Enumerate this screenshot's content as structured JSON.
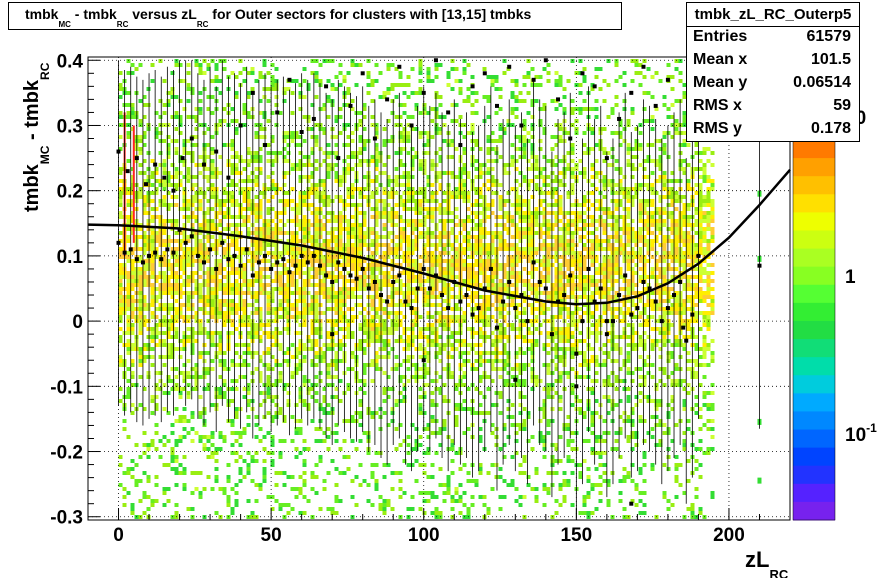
{
  "chart_data": {
    "type": "heatmap",
    "title_parts": [
      {
        "t": "tmbk",
        "sub": "MC"
      },
      {
        "t": " - tmbk",
        "sub": "RC"
      },
      {
        "t": " versus zL",
        "sub": "RC"
      },
      {
        "t": " for Outer sectors for clusters with [13,15] tmbks",
        "sub": ""
      }
    ],
    "xlabel": {
      "t": "zL",
      "sub": "RC"
    },
    "ylabel_parts": [
      {
        "t": "tmbk",
        "sub": "MC"
      },
      {
        "t": " - tmbk",
        "sub": "RC"
      }
    ],
    "xlim": [
      -10,
      220
    ],
    "ylim": [
      -0.305,
      0.405
    ],
    "xticks": [
      0,
      50,
      100,
      150,
      200
    ],
    "yticks": [
      -0.3,
      -0.2,
      -0.1,
      0,
      0.1,
      0.2,
      0.3,
      0.4
    ],
    "xtick_labels": [
      "0",
      "50",
      "100",
      "150",
      "200"
    ],
    "ytick_labels": [
      "-0.3",
      "-0.2",
      "-0.1",
      "0",
      "0.1",
      "0.2",
      "0.3",
      "0.4"
    ],
    "grid": true,
    "colz_labels": [
      {
        "t": "10",
        "sup": ""
      },
      {
        "t": "1",
        "sup": ""
      },
      {
        "t": "10",
        "sup": "-1"
      }
    ],
    "fit_curve": {
      "x": [
        -10,
        0,
        20,
        40,
        60,
        80,
        100,
        120,
        140,
        150,
        160,
        170,
        180,
        190,
        200,
        210,
        220
      ],
      "y": [
        0.148,
        0.147,
        0.142,
        0.13,
        0.116,
        0.097,
        0.073,
        0.047,
        0.03,
        0.026,
        0.028,
        0.038,
        0.058,
        0.088,
        0.128,
        0.178,
        0.232
      ]
    },
    "profile": {
      "x": [
        0,
        2,
        4,
        6,
        8,
        10,
        12,
        14,
        16,
        18,
        20,
        22,
        24,
        26,
        28,
        30,
        32,
        34,
        36,
        38,
        40,
        42,
        44,
        46,
        48,
        50,
        52,
        54,
        56,
        58,
        60,
        62,
        64,
        66,
        68,
        70,
        72,
        74,
        76,
        78,
        80,
        82,
        84,
        86,
        88,
        90,
        92,
        94,
        96,
        98,
        100,
        102,
        104,
        106,
        108,
        110,
        112,
        114,
        116,
        118,
        120,
        122,
        124,
        126,
        128,
        130,
        132,
        134,
        136,
        138,
        140,
        142,
        144,
        146,
        148,
        150,
        152,
        154,
        156,
        158,
        160,
        162,
        164,
        166,
        168,
        170,
        172,
        174,
        176,
        178,
        180,
        182,
        184,
        186,
        188,
        190,
        210
      ],
      "y": [
        0.12,
        0.105,
        0.11,
        0.095,
        0.09,
        0.1,
        0.105,
        0.095,
        0.11,
        0.105,
        0.14,
        0.12,
        0.13,
        0.1,
        0.09,
        0.11,
        0.08,
        0.12,
        0.095,
        0.1,
        0.085,
        0.11,
        0.07,
        0.09,
        0.1,
        0.08,
        0.09,
        0.095,
        0.075,
        0.085,
        0.1,
        0.09,
        0.1,
        0.085,
        0.07,
        0.06,
        0.09,
        0.08,
        0.07,
        0.065,
        0.08,
        0.05,
        0.06,
        0.04,
        0.03,
        0.06,
        0.07,
        0.03,
        0.02,
        0.05,
        0.08,
        0.05,
        0.07,
        0.04,
        0.02,
        0.06,
        0.03,
        0.04,
        0.01,
        0.02,
        0.05,
        0.08,
        -0.01,
        0.03,
        0.06,
        0.02,
        0.04,
        0.0,
        0.09,
        0.06,
        0.05,
        -0.02,
        0.03,
        0.04,
        0.07,
        -0.05,
        0.0,
        0.08,
        0.03,
        0.05,
        -0.02,
        0.0,
        0.04,
        0.07,
        0.01,
        0.02,
        0.06,
        0.05,
        0.03,
        0.0,
        0.02,
        0.04,
        0.06,
        -0.03,
        0.01,
        0.1,
        0.085
      ]
    },
    "upper_points": {
      "x": [
        0,
        3,
        6,
        9,
        12,
        15,
        18,
        21,
        24,
        28,
        32,
        36,
        40,
        44,
        48,
        52,
        56,
        60,
        64,
        68,
        72,
        76,
        80,
        84,
        88,
        92,
        96,
        100,
        104,
        108,
        112,
        116,
        120,
        124,
        128,
        132,
        136,
        140,
        144,
        148,
        152,
        156,
        160,
        164,
        168,
        172,
        176,
        180
      ],
      "y": [
        0.26,
        0.23,
        0.25,
        0.21,
        0.24,
        0.22,
        0.2,
        0.25,
        0.28,
        0.24,
        0.26,
        0.22,
        0.3,
        0.35,
        0.27,
        0.32,
        0.37,
        0.29,
        0.31,
        0.36,
        0.25,
        0.33,
        0.38,
        0.28,
        0.34,
        0.39,
        0.3,
        0.35,
        0.4,
        0.32,
        0.27,
        0.36,
        0.38,
        0.33,
        0.39,
        0.3,
        0.37,
        0.4,
        0.34,
        0.28,
        0.38,
        0.36,
        0.25,
        0.31,
        0.35,
        0.39,
        0.33,
        0.37
      ]
    },
    "lower_points": {
      "x": [
        70,
        100,
        130,
        150,
        160,
        168,
        185
      ],
      "y": [
        -0.02,
        -0.06,
        -0.09,
        -0.1,
        0.0,
        -0.28,
        -0.01
      ]
    }
  },
  "stats": {
    "name": "tmbk_zL_RC_Outerp5",
    "rows": [
      {
        "k": "Entries",
        "v": "61579"
      },
      {
        "k": "Mean x",
        "v": "101.5"
      },
      {
        "k": "Mean y",
        "v": "0.06514"
      },
      {
        "k": "RMS x",
        "v": "59"
      },
      {
        "k": "RMS y",
        "v": "0.178"
      }
    ]
  }
}
